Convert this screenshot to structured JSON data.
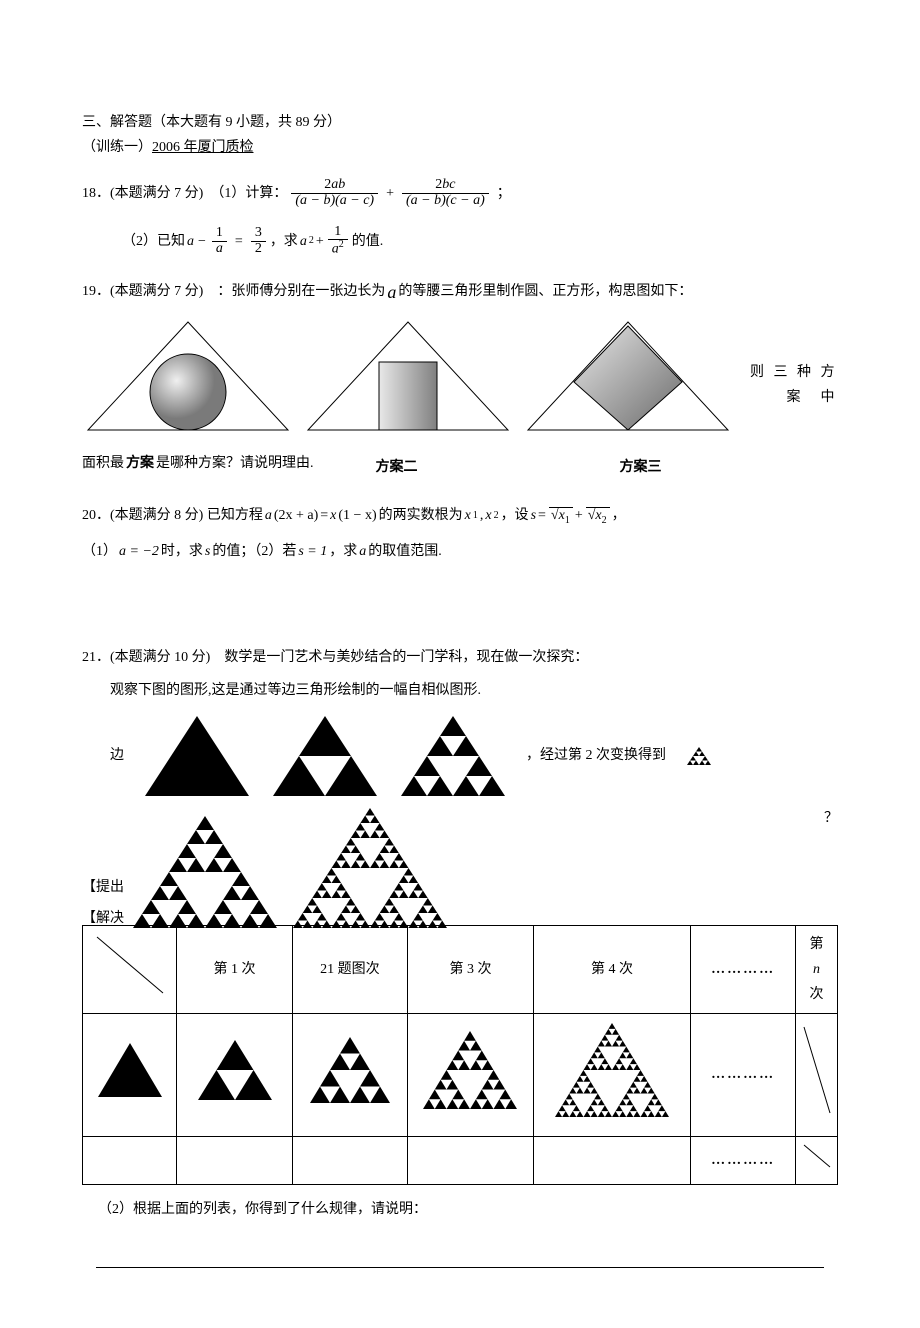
{
  "section": {
    "heading": "三、解答题（本大题有 9 小题，共 89 分）",
    "sub": "（训练一）",
    "source": "2006 年厦门质检"
  },
  "q18": {
    "head": "18．(本题满分 7 分)　（1）计算：",
    "frac1_num_a": "2",
    "frac1_num_b": "ab",
    "frac1_den": "(a − b)(a − c)",
    "plus": "+",
    "frac2_num_a": "2",
    "frac2_num_b": "bc",
    "frac2_den": "(a − b)(c − a)",
    "tail": "；",
    "part2_pre": "（2）已知 ",
    "lhs_a": "a",
    "minus": "−",
    "lhs_frac_num": "1",
    "lhs_frac_den": "a",
    "eq": "=",
    "rhs_num": "3",
    "rhs_den": "2",
    "mid": "，求 ",
    "a2": "a",
    "a2_sup": "2",
    "plus2": "+",
    "rfrac_num": "1",
    "rfrac_den_a": "a",
    "rfrac_den_sup": "2",
    "tail2": " 的值."
  },
  "q19": {
    "head_a": "19．(本题满分 7 分)　：张师傅分别在一张边长为 ",
    "a": "a",
    "head_b": " 的等腰三角形里制作圆、正方形，构思图如下：",
    "side1": "则 三 种 方",
    "side2": "案　中",
    "after_a": "面积最",
    "after_bold": "方案",
    "after_b": "是哪种方案？请说明理由.",
    "scheme1": "方案一",
    "scheme2": "方案二",
    "scheme3": "方案三",
    "svg": {
      "tri_stroke": "#000000",
      "fill": "#ffffff",
      "circle_grad_from": "#dcdcdc",
      "circle_grad_to": "#7a7a7a",
      "rect_grad_from": "#e8e8e8",
      "rect_grad_to": "#808080",
      "square_grad_from": "#e8e8e8",
      "square_grad_to": "#6a6a6a"
    }
  },
  "q20": {
    "head": "20．(本题满分 8 分)  已知方程 ",
    "eq_lhs_a": "a",
    "eq_lhs_inner": "(2x + a)",
    "eq_mid": " = ",
    "eq_rhs_x": "x",
    "eq_rhs_inner": "(1 − x)",
    "mid": " 的两实数根为 ",
    "x1": "x",
    "x1s": "1",
    "comma": ", ",
    "x2": "x",
    "x2s": "2",
    "set": " ，设 ",
    "s": "s",
    "eq2": " = ",
    "sqrt1_inner": "x",
    "sqrt1_sub": "1",
    "plus": " + ",
    "sqrt2_inner": "x",
    "sqrt2_sub": "2",
    "tail": " ，",
    "line2_a": "（1）",
    "line2_b": "a = −2",
    "line2_c": " 时，求 ",
    "line2_d": "s",
    "line2_e": " 的值；（2）若 ",
    "line2_f": "s = 1",
    "line2_g": " ，求 ",
    "line2_h": "a",
    "line2_i": " 的取值范围."
  },
  "q21": {
    "head": "21．(本题满分 10 分)　数学是一门艺术与美妙结合的一门学科，现在做一次探究：",
    "obs": "观察下图的图形,这是通过等边三角形绘制的一幅自相似图形.",
    "text_left": "边",
    "text_mid": "，经过第 2 次变换得到",
    "tag1": "【提出",
    "tag1_tail": "？",
    "tag2": "【解决",
    "col1": "第 1 次",
    "col2_pre": "21 题图",
    "col2_suf": "次",
    "col3": "第 3 次",
    "col4": "第 4 次",
    "dots": "…………",
    "coln_a": "第",
    "coln_b": "n",
    "coln_c": "次",
    "rule": "（2）根据上面的列表，你得到了什么规律，请说明：",
    "tri_fill": "#000000"
  }
}
